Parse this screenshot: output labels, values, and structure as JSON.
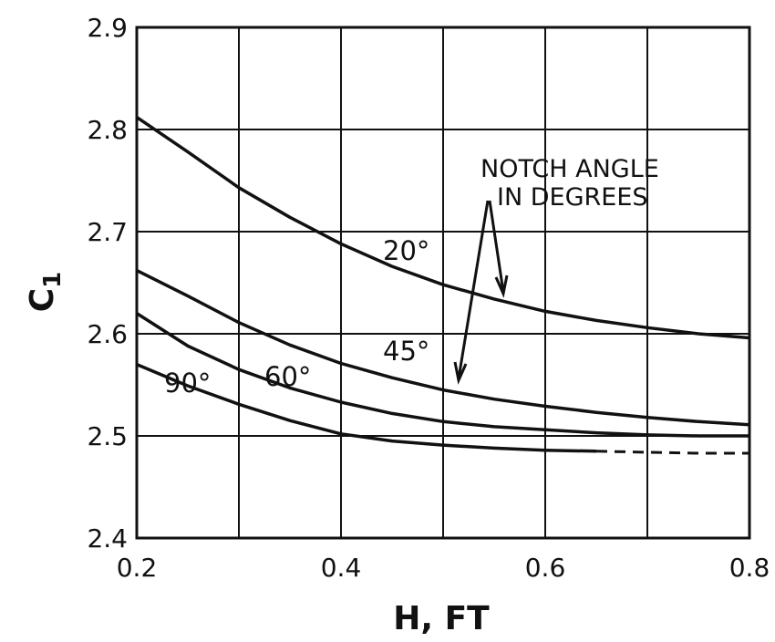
{
  "chart_data": {
    "type": "line",
    "title": "",
    "xlabel": "H, FT",
    "ylabel": "C",
    "ylabel_subscript": "1",
    "xlim": [
      0.2,
      0.8
    ],
    "ylim": [
      2.4,
      2.9
    ],
    "x_ticks": [
      "0.2",
      "0.4",
      "0.6",
      "0.8"
    ],
    "y_ticks": [
      "2.4",
      "2.5",
      "2.6",
      "2.7",
      "2.8",
      "2.9"
    ],
    "x_tick_values": [
      0.2,
      0.4,
      0.6,
      0.8
    ],
    "y_tick_values": [
      2.4,
      2.5,
      2.6,
      2.7,
      2.8,
      2.9
    ],
    "x_grid": [
      0.2,
      0.3,
      0.4,
      0.5,
      0.6,
      0.7,
      0.8
    ],
    "y_grid": [
      2.4,
      2.5,
      2.6,
      2.7,
      2.8,
      2.9
    ],
    "grid": true,
    "annotation": [
      "NOTCH ANGLE",
      "IN DEGREES"
    ],
    "series": [
      {
        "name": "20°",
        "x": [
          0.2,
          0.25,
          0.3,
          0.35,
          0.4,
          0.45,
          0.5,
          0.55,
          0.6,
          0.65,
          0.7,
          0.75,
          0.8
        ],
        "y": [
          2.812,
          2.778,
          2.743,
          2.714,
          2.688,
          2.666,
          2.648,
          2.634,
          2.622,
          2.613,
          2.606,
          2.6,
          2.596
        ]
      },
      {
        "name": "45°",
        "x": [
          0.2,
          0.25,
          0.3,
          0.35,
          0.4,
          0.45,
          0.5,
          0.55,
          0.6,
          0.65,
          0.7,
          0.75,
          0.8
        ],
        "y": [
          2.662,
          2.637,
          2.611,
          2.589,
          2.571,
          2.557,
          2.545,
          2.536,
          2.529,
          2.523,
          2.518,
          2.514,
          2.511
        ]
      },
      {
        "name": "60°",
        "x": [
          0.2,
          0.25,
          0.3,
          0.35,
          0.4,
          0.45,
          0.5,
          0.55,
          0.6,
          0.65,
          0.7,
          0.75,
          0.8
        ],
        "y": [
          2.62,
          2.588,
          2.565,
          2.547,
          2.533,
          2.522,
          2.514,
          2.509,
          2.506,
          2.503,
          2.501,
          2.5,
          2.5
        ]
      },
      {
        "name": "90°",
        "x": [
          0.2,
          0.25,
          0.3,
          0.35,
          0.4,
          0.45,
          0.5,
          0.55,
          0.6,
          0.65,
          0.7,
          0.75,
          0.8
        ],
        "y": [
          2.57,
          2.549,
          2.531,
          2.515,
          2.502,
          2.495,
          2.491,
          2.488,
          2.486,
          2.485,
          2.484,
          2.483,
          2.483
        ],
        "dashed_from_x": 0.65
      }
    ]
  }
}
